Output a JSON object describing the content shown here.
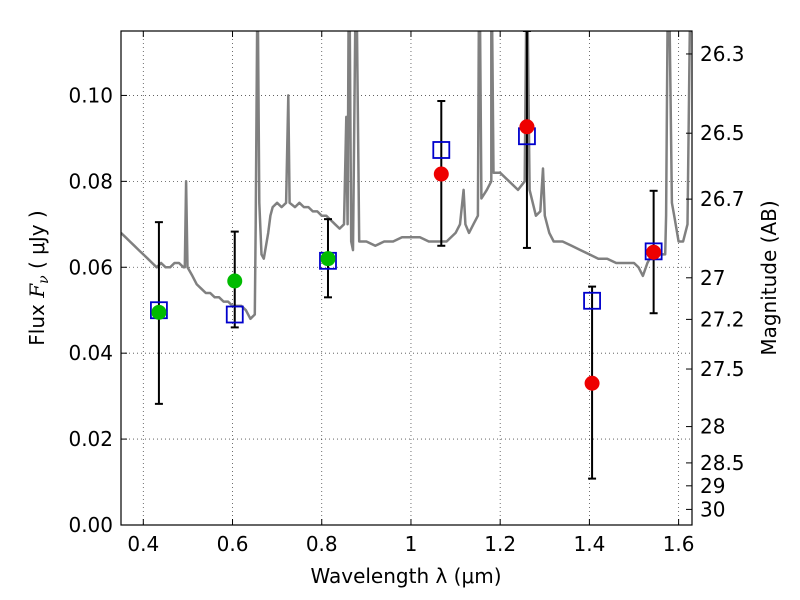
{
  "chart_data": {
    "type": "scatter",
    "xlabel": "Wavelength  λ (μm)",
    "ylabel_prefix": "Flux  ",
    "ylabel_var": "F",
    "ylabel_sub": "ν",
    "ylabel_suffix": "  ( μJy )",
    "y2label": "Magnitude (AB)",
    "xlim": [
      0.35,
      1.63
    ],
    "ylim": [
      0.0,
      0.115
    ],
    "grid": true,
    "x_ticks": [
      {
        "value": 0.4,
        "label": "0.4"
      },
      {
        "value": 0.6,
        "label": "0.6"
      },
      {
        "value": 0.8,
        "label": "0.8"
      },
      {
        "value": 1.0,
        "label": "1"
      },
      {
        "value": 1.2,
        "label": "1.2"
      },
      {
        "value": 1.4,
        "label": "1.4"
      },
      {
        "value": 1.6,
        "label": "1.6"
      }
    ],
    "y_ticks": [
      {
        "value": 0.0,
        "label": "0.00"
      },
      {
        "value": 0.02,
        "label": "0.02"
      },
      {
        "value": 0.04,
        "label": "0.04"
      },
      {
        "value": 0.06,
        "label": "0.06"
      },
      {
        "value": 0.08,
        "label": "0.08"
      },
      {
        "value": 0.1,
        "label": "0.10"
      }
    ],
    "y2_ticks": [
      {
        "value": 26.3,
        "label": "26.3"
      },
      {
        "value": 26.5,
        "label": "26.5"
      },
      {
        "value": 26.7,
        "label": "26.7"
      },
      {
        "value": 27.0,
        "label": "27"
      },
      {
        "value": 27.2,
        "label": "27.2"
      },
      {
        "value": 27.5,
        "label": "27.5"
      },
      {
        "value": 28.0,
        "label": "28"
      },
      {
        "value": 28.5,
        "label": "28.5"
      },
      {
        "value": 29.0,
        "label": "29"
      },
      {
        "value": 30.0,
        "label": "30"
      }
    ],
    "observed": [
      {
        "x": 0.435,
        "y": 0.0495,
        "err_low": 0.0282,
        "err_high": 0.0705,
        "color": "#00bb00"
      },
      {
        "x": 0.605,
        "y": 0.0568,
        "err_low": 0.046,
        "err_high": 0.0683,
        "color": "#00bb00"
      },
      {
        "x": 0.814,
        "y": 0.062,
        "err_low": 0.053,
        "err_high": 0.0712,
        "color": "#00bb00"
      },
      {
        "x": 1.068,
        "y": 0.0817,
        "err_low": 0.065,
        "err_high": 0.0987,
        "color": "#ee0000"
      },
      {
        "x": 1.26,
        "y": 0.0927,
        "err_low": 0.0645,
        "err_high": 0.115,
        "color": "#ee0000"
      },
      {
        "x": 1.406,
        "y": 0.033,
        "err_low": 0.0108,
        "err_high": 0.0555,
        "color": "#ee0000"
      },
      {
        "x": 1.544,
        "y": 0.0635,
        "err_low": 0.0493,
        "err_high": 0.0778,
        "color": "#ee0000"
      }
    ],
    "model_photometry": [
      {
        "x": 0.435,
        "y": 0.05
      },
      {
        "x": 0.605,
        "y": 0.049
      },
      {
        "x": 0.814,
        "y": 0.0615
      },
      {
        "x": 1.068,
        "y": 0.0873
      },
      {
        "x": 1.26,
        "y": 0.0905
      },
      {
        "x": 1.406,
        "y": 0.0522
      },
      {
        "x": 1.544,
        "y": 0.0637
      }
    ],
    "model_spectrum": {
      "color": "#808080",
      "points": [
        [
          0.35,
          0.068
        ],
        [
          0.36,
          0.067
        ],
        [
          0.37,
          0.066
        ],
        [
          0.38,
          0.065
        ],
        [
          0.39,
          0.064
        ],
        [
          0.4,
          0.063
        ],
        [
          0.41,
          0.062
        ],
        [
          0.42,
          0.061
        ],
        [
          0.43,
          0.06
        ],
        [
          0.44,
          0.061
        ],
        [
          0.45,
          0.06
        ],
        [
          0.46,
          0.06
        ],
        [
          0.47,
          0.061
        ],
        [
          0.48,
          0.061
        ],
        [
          0.49,
          0.06
        ],
        [
          0.493,
          0.06
        ],
        [
          0.496,
          0.08
        ],
        [
          0.499,
          0.06
        ],
        [
          0.51,
          0.058
        ],
        [
          0.52,
          0.056
        ],
        [
          0.53,
          0.055
        ],
        [
          0.54,
          0.054
        ],
        [
          0.55,
          0.054
        ],
        [
          0.56,
          0.053
        ],
        [
          0.57,
          0.053
        ],
        [
          0.58,
          0.052
        ],
        [
          0.59,
          0.052
        ],
        [
          0.6,
          0.051
        ],
        [
          0.61,
          0.051
        ],
        [
          0.62,
          0.051
        ],
        [
          0.63,
          0.05
        ],
        [
          0.64,
          0.048
        ],
        [
          0.65,
          0.049
        ],
        [
          0.652,
          0.07
        ],
        [
          0.655,
          0.115
        ],
        [
          0.657,
          0.115
        ],
        [
          0.66,
          0.075
        ],
        [
          0.665,
          0.063
        ],
        [
          0.67,
          0.062
        ],
        [
          0.675,
          0.065
        ],
        [
          0.68,
          0.068
        ],
        [
          0.685,
          0.072
        ],
        [
          0.69,
          0.074
        ],
        [
          0.7,
          0.075
        ],
        [
          0.71,
          0.074
        ],
        [
          0.72,
          0.075
        ],
        [
          0.725,
          0.1
        ],
        [
          0.728,
          0.075
        ],
        [
          0.74,
          0.074
        ],
        [
          0.75,
          0.075
        ],
        [
          0.76,
          0.074
        ],
        [
          0.77,
          0.074
        ],
        [
          0.78,
          0.073
        ],
        [
          0.79,
          0.073
        ],
        [
          0.8,
          0.072
        ],
        [
          0.81,
          0.072
        ],
        [
          0.82,
          0.071
        ],
        [
          0.83,
          0.07
        ],
        [
          0.84,
          0.069
        ],
        [
          0.85,
          0.07
        ],
        [
          0.855,
          0.095
        ],
        [
          0.858,
          0.07
        ],
        [
          0.86,
          0.115
        ],
        [
          0.863,
          0.115
        ],
        [
          0.866,
          0.066
        ],
        [
          0.87,
          0.064
        ],
        [
          0.875,
          0.115
        ],
        [
          0.879,
          0.115
        ],
        [
          0.884,
          0.066
        ],
        [
          0.9,
          0.066
        ],
        [
          0.92,
          0.065
        ],
        [
          0.94,
          0.066
        ],
        [
          0.96,
          0.066
        ],
        [
          0.98,
          0.067
        ],
        [
          1.0,
          0.067
        ],
        [
          1.02,
          0.067
        ],
        [
          1.04,
          0.066
        ],
        [
          1.06,
          0.066
        ],
        [
          1.08,
          0.066
        ],
        [
          1.1,
          0.068
        ],
        [
          1.11,
          0.07
        ],
        [
          1.118,
          0.078
        ],
        [
          1.122,
          0.07
        ],
        [
          1.13,
          0.068
        ],
        [
          1.14,
          0.07
        ],
        [
          1.15,
          0.072
        ],
        [
          1.152,
          0.115
        ],
        [
          1.155,
          0.115
        ],
        [
          1.158,
          0.076
        ],
        [
          1.17,
          0.078
        ],
        [
          1.18,
          0.08
        ],
        [
          1.18,
          0.115
        ],
        [
          1.182,
          0.115
        ],
        [
          1.185,
          0.082
        ],
        [
          1.2,
          0.082
        ],
        [
          1.22,
          0.08
        ],
        [
          1.24,
          0.078
        ],
        [
          1.255,
          0.08
        ],
        [
          1.258,
          0.115
        ],
        [
          1.262,
          0.115
        ],
        [
          1.266,
          0.078
        ],
        [
          1.28,
          0.072
        ],
        [
          1.29,
          0.073
        ],
        [
          1.296,
          0.083
        ],
        [
          1.3,
          0.072
        ],
        [
          1.31,
          0.068
        ],
        [
          1.32,
          0.066
        ],
        [
          1.34,
          0.066
        ],
        [
          1.36,
          0.065
        ],
        [
          1.38,
          0.064
        ],
        [
          1.4,
          0.063
        ],
        [
          1.42,
          0.062
        ],
        [
          1.44,
          0.062
        ],
        [
          1.46,
          0.061
        ],
        [
          1.48,
          0.061
        ],
        [
          1.5,
          0.061
        ],
        [
          1.51,
          0.06
        ],
        [
          1.52,
          0.058
        ],
        [
          1.53,
          0.061
        ],
        [
          1.54,
          0.063
        ],
        [
          1.56,
          0.063
        ],
        [
          1.57,
          0.063
        ],
        [
          1.572,
          0.072
        ],
        [
          1.575,
          0.115
        ],
        [
          1.58,
          0.115
        ],
        [
          1.585,
          0.075
        ],
        [
          1.59,
          0.072
        ],
        [
          1.6,
          0.066
        ],
        [
          1.61,
          0.066
        ],
        [
          1.62,
          0.07
        ],
        [
          1.625,
          0.115
        ],
        [
          1.63,
          0.115
        ]
      ]
    }
  }
}
